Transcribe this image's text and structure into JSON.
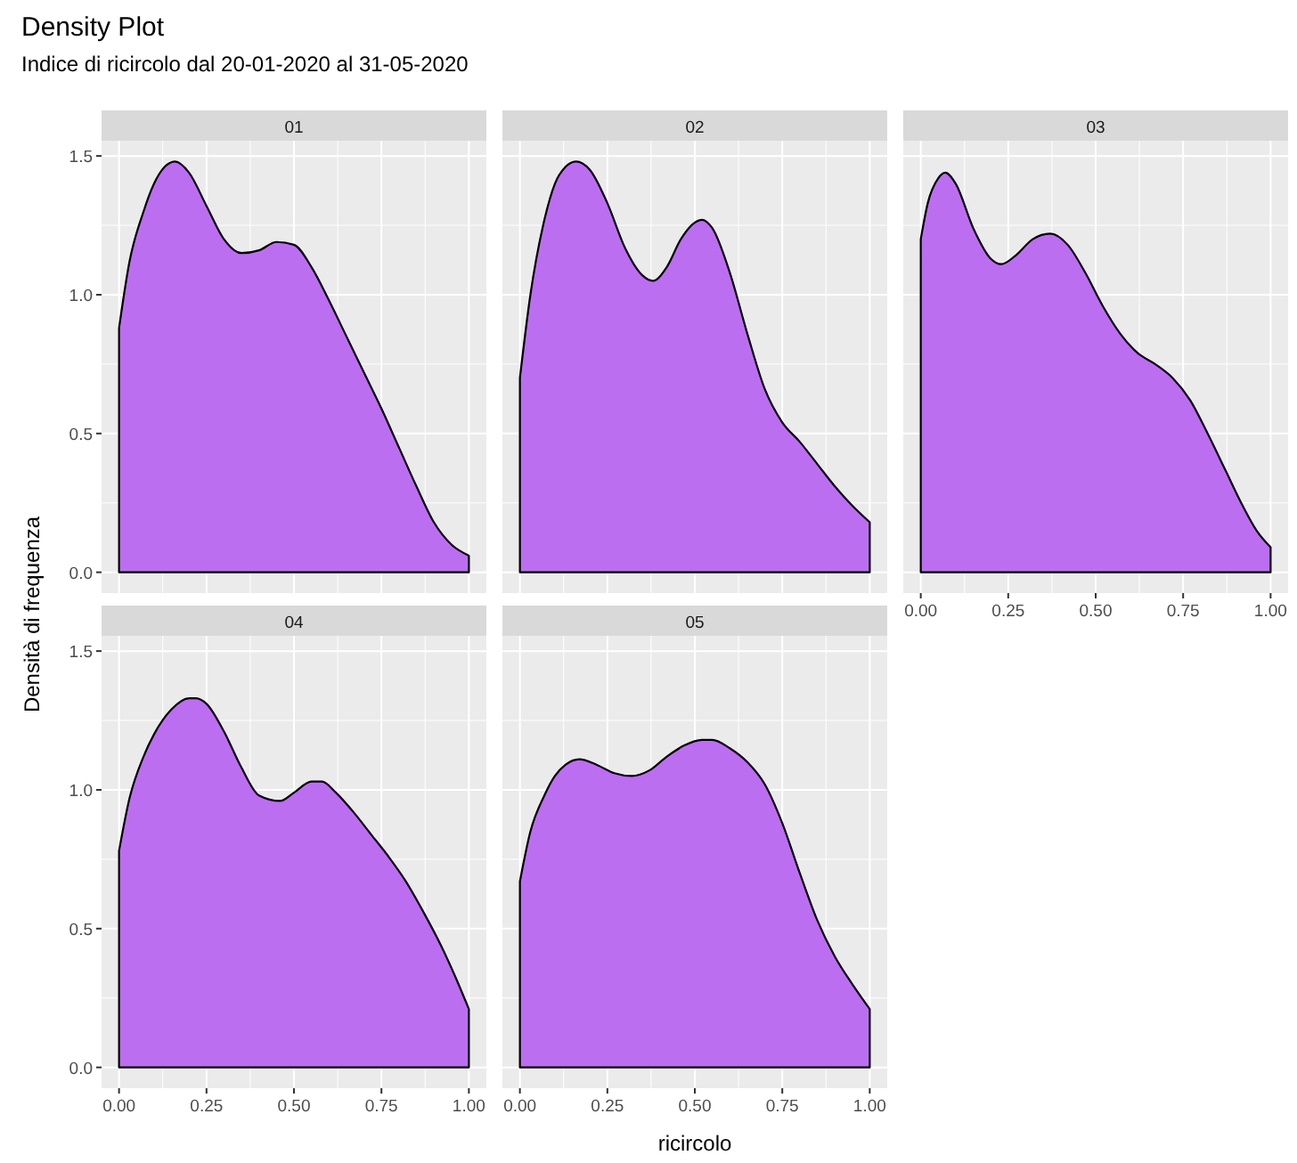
{
  "chart_data": [
    {
      "type": "other",
      "title": "Density Plot",
      "subtitle": "Indice di ricircolo dal 20-01-2020 al 31-05-2020",
      "xlabel": "ricircolo",
      "ylabel": "Densità di frequenza"
    },
    {
      "type": "area",
      "title": "01",
      "color": "#bc6ef0",
      "grid": true,
      "tick_labels": "y",
      "xlim": [
        -0.05,
        1.05
      ],
      "ylim": [
        -0.075,
        1.555
      ],
      "xticks": [
        {
          "value": 0,
          "label": null
        },
        {
          "value": 0.25,
          "label": null
        },
        {
          "value": 0.5,
          "label": null
        },
        {
          "value": 0.75,
          "label": null
        },
        {
          "value": 1,
          "label": null
        }
      ],
      "yticks": [
        {
          "value": 0,
          "label": "0.0"
        },
        {
          "value": 0.5,
          "label": "0.5"
        },
        {
          "value": 1,
          "label": "1.0"
        },
        {
          "value": 1.5,
          "label": "1.5"
        }
      ],
      "x": [
        0,
        0.03,
        0.07,
        0.1,
        0.13,
        0.16,
        0.2,
        0.25,
        0.3,
        0.35,
        0.4,
        0.45,
        0.5,
        0.55,
        0.6,
        0.65,
        0.7,
        0.75,
        0.8,
        0.85,
        0.9,
        0.95,
        1.0
      ],
      "values": [
        0.88,
        1.12,
        1.3,
        1.4,
        1.46,
        1.48,
        1.44,
        1.32,
        1.2,
        1.15,
        1.16,
        1.19,
        1.18,
        1.1,
        0.98,
        0.85,
        0.72,
        0.59,
        0.45,
        0.31,
        0.18,
        0.1,
        0.06
      ]
    },
    {
      "type": "area",
      "title": "02",
      "color": "#bc6ef0",
      "grid": true,
      "tick_labels": false,
      "xlim": [
        -0.05,
        1.05
      ],
      "ylim": [
        -0.075,
        1.555
      ],
      "xticks": [
        {
          "value": 0,
          "label": null
        },
        {
          "value": 0.25,
          "label": null
        },
        {
          "value": 0.5,
          "label": null
        },
        {
          "value": 0.75,
          "label": null
        },
        {
          "value": 1,
          "label": null
        }
      ],
      "yticks": [
        {
          "value": 0,
          "label": null
        },
        {
          "value": 0.5,
          "label": null
        },
        {
          "value": 1,
          "label": null
        },
        {
          "value": 1.5,
          "label": null
        }
      ],
      "x": [
        0,
        0.03,
        0.07,
        0.1,
        0.13,
        0.16,
        0.2,
        0.25,
        0.3,
        0.35,
        0.38,
        0.42,
        0.46,
        0.5,
        0.52,
        0.55,
        0.6,
        0.65,
        0.7,
        0.75,
        0.8,
        0.85,
        0.9,
        0.95,
        1.0
      ],
      "values": [
        0.7,
        1.0,
        1.27,
        1.4,
        1.46,
        1.48,
        1.45,
        1.33,
        1.17,
        1.07,
        1.05,
        1.1,
        1.2,
        1.26,
        1.27,
        1.24,
        1.08,
        0.86,
        0.66,
        0.54,
        0.47,
        0.39,
        0.31,
        0.24,
        0.18
      ]
    },
    {
      "type": "area",
      "title": "03",
      "color": "#bc6ef0",
      "grid": true,
      "tick_labels": "x",
      "xlim": [
        -0.05,
        1.05
      ],
      "ylim": [
        -0.075,
        1.555
      ],
      "xticks": [
        {
          "value": 0,
          "label": "0.00"
        },
        {
          "value": 0.25,
          "label": "0.25"
        },
        {
          "value": 0.5,
          "label": "0.50"
        },
        {
          "value": 0.75,
          "label": "0.75"
        },
        {
          "value": 1,
          "label": "1.00"
        }
      ],
      "yticks": [
        {
          "value": 0,
          "label": null
        },
        {
          "value": 0.5,
          "label": null
        },
        {
          "value": 1,
          "label": null
        },
        {
          "value": 1.5,
          "label": null
        }
      ],
      "x": [
        0,
        0.02,
        0.05,
        0.07,
        0.1,
        0.15,
        0.2,
        0.23,
        0.27,
        0.32,
        0.37,
        0.42,
        0.47,
        0.52,
        0.57,
        0.62,
        0.67,
        0.72,
        0.77,
        0.82,
        0.87,
        0.92,
        0.96,
        1.0
      ],
      "values": [
        1.2,
        1.33,
        1.42,
        1.44,
        1.4,
        1.24,
        1.13,
        1.11,
        1.14,
        1.2,
        1.22,
        1.18,
        1.08,
        0.96,
        0.86,
        0.79,
        0.75,
        0.7,
        0.62,
        0.5,
        0.37,
        0.24,
        0.15,
        0.09
      ]
    },
    {
      "type": "area",
      "title": "04",
      "color": "#bc6ef0",
      "grid": true,
      "xlim": [
        -0.05,
        1.05
      ],
      "ylim": [
        -0.075,
        1.555
      ],
      "xticks": [
        {
          "value": 0,
          "label": "0.00"
        },
        {
          "value": 0.25,
          "label": "0.25"
        },
        {
          "value": 0.5,
          "label": "0.50"
        },
        {
          "value": 0.75,
          "label": "0.75"
        },
        {
          "value": 1,
          "label": "1.00"
        }
      ],
      "yticks": [
        {
          "value": 0,
          "label": "0.0"
        },
        {
          "value": 0.5,
          "label": "0.5"
        },
        {
          "value": 1,
          "label": "1.0"
        },
        {
          "value": 1.5,
          "label": "1.5"
        }
      ],
      "x": [
        0,
        0.03,
        0.07,
        0.1,
        0.15,
        0.2,
        0.22,
        0.25,
        0.3,
        0.35,
        0.4,
        0.46,
        0.5,
        0.55,
        0.58,
        0.62,
        0.67,
        0.72,
        0.77,
        0.82,
        0.87,
        0.92,
        0.96,
        1.0
      ],
      "values": [
        0.78,
        0.97,
        1.12,
        1.2,
        1.29,
        1.33,
        1.33,
        1.31,
        1.21,
        1.08,
        0.98,
        0.96,
        0.99,
        1.03,
        1.03,
        0.99,
        0.92,
        0.84,
        0.76,
        0.67,
        0.56,
        0.44,
        0.33,
        0.21
      ]
    },
    {
      "type": "area",
      "title": "05",
      "color": "#bc6ef0",
      "grid": true,
      "tick_labels": "x",
      "xlim": [
        -0.05,
        1.05
      ],
      "ylim": [
        -0.075,
        1.555
      ],
      "xticks": [
        {
          "value": 0,
          "label": "0.00"
        },
        {
          "value": 0.25,
          "label": "0.25"
        },
        {
          "value": 0.5,
          "label": "0.50"
        },
        {
          "value": 0.75,
          "label": "0.75"
        },
        {
          "value": 1,
          "label": "1.00"
        }
      ],
      "yticks": [
        {
          "value": 0,
          "label": null
        },
        {
          "value": 0.5,
          "label": null
        },
        {
          "value": 1,
          "label": null
        },
        {
          "value": 1.5,
          "label": null
        }
      ],
      "x": [
        0,
        0.03,
        0.07,
        0.1,
        0.13,
        0.17,
        0.22,
        0.27,
        0.32,
        0.37,
        0.42,
        0.47,
        0.52,
        0.55,
        0.6,
        0.65,
        0.7,
        0.75,
        0.8,
        0.85,
        0.9,
        0.95,
        1.0
      ],
      "values": [
        0.67,
        0.85,
        0.98,
        1.05,
        1.09,
        1.11,
        1.09,
        1.06,
        1.05,
        1.07,
        1.12,
        1.16,
        1.18,
        1.18,
        1.15,
        1.1,
        1.02,
        0.88,
        0.7,
        0.53,
        0.4,
        0.3,
        0.21
      ]
    }
  ]
}
